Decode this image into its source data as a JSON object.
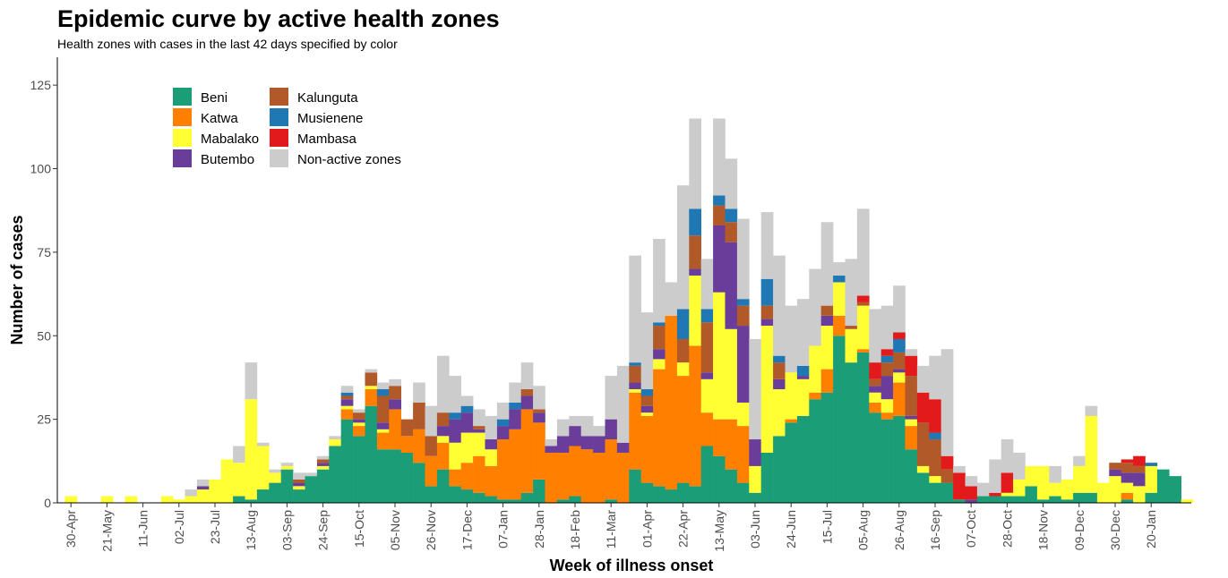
{
  "title": "Epidemic curve by active health zones",
  "subtitle": "Health zones with cases in the last 42 days specified by color",
  "chart_data": {
    "type": "bar",
    "stacked": true,
    "title": "Epidemic curve by active health zones",
    "subtitle": "Health zones with cases in the last 42 days specified by color",
    "xlabel": "Week of illness onset",
    "ylabel": "Number of cases",
    "ylim": [
      0,
      133
    ],
    "yticks": [
      0,
      25,
      50,
      75,
      100,
      125
    ],
    "grid": false,
    "legend_position": "top-left inside plot, two columns",
    "x_tick_labels": [
      "30-Apr",
      "21-May",
      "11-Jun",
      "02-Jul",
      "23-Jul",
      "13-Aug",
      "03-Sep",
      "24-Sep",
      "15-Oct",
      "05-Nov",
      "26-Nov",
      "17-Dec",
      "07-Jan",
      "28-Jan",
      "18-Feb",
      "11-Mar",
      "01-Apr",
      "22-Apr",
      "13-May",
      "03-Jun",
      "24-Jun",
      "15-Jul",
      "05-Aug",
      "26-Aug",
      "16-Sep",
      "07-Oct",
      "28-Oct",
      "18-Nov",
      "09-Dec",
      "30-Dec",
      "20-Jan"
    ],
    "x_tick_week_index": [
      0,
      3,
      6,
      9,
      12,
      15,
      18,
      21,
      24,
      27,
      30,
      33,
      36,
      39,
      42,
      45,
      48,
      51,
      54,
      57,
      60,
      63,
      66,
      69,
      72,
      75,
      78,
      81,
      84,
      87,
      90
    ],
    "legend_order": [
      "Beni",
      "Kalunguta",
      "Katwa",
      "Musienene",
      "Mabalako",
      "Mambasa",
      "Butembo",
      "Non-active zones"
    ],
    "series_order": [
      "Beni",
      "Katwa",
      "Mabalako",
      "Butembo",
      "Kalunguta",
      "Musienene",
      "Mambasa",
      "Non-active zones"
    ],
    "series": [
      {
        "name": "Beni",
        "color": "#1b9e77",
        "values": [
          0,
          0,
          0,
          0,
          0,
          0,
          0,
          0,
          0,
          0,
          0,
          0,
          0,
          0,
          2,
          1,
          4,
          6,
          10,
          4,
          8,
          10,
          17,
          25,
          20,
          29,
          16,
          16,
          15,
          12,
          5,
          10,
          5,
          4,
          3,
          2,
          1,
          1,
          3,
          7,
          0,
          1,
          2,
          0,
          0,
          1,
          0,
          10,
          6,
          5,
          4,
          6,
          5,
          17,
          14,
          10,
          6,
          3,
          15,
          20,
          24,
          26,
          31,
          33,
          50,
          42,
          45,
          27,
          25,
          26,
          16,
          9,
          6,
          6,
          1,
          0,
          2,
          2,
          2,
          2,
          5,
          1,
          2,
          1,
          3,
          3,
          0,
          0,
          1,
          0,
          3,
          10,
          8,
          0
        ]
      },
      {
        "name": "Katwa",
        "color": "#ff7f00",
        "values": [
          0,
          0,
          0,
          0,
          0,
          0,
          0,
          0,
          0,
          0,
          0,
          0,
          0,
          0,
          0,
          0,
          0,
          0,
          0,
          0,
          0,
          0,
          0,
          3,
          3,
          5,
          5,
          12,
          5,
          10,
          9,
          8,
          5,
          8,
          11,
          9,
          18,
          21,
          25,
          17,
          15,
          14,
          15,
          16,
          15,
          18,
          15,
          23,
          20,
          35,
          52,
          32,
          42,
          10,
          11,
          15,
          17,
          0,
          0,
          0,
          1,
          0,
          2,
          7,
          6,
          0,
          1,
          3,
          2,
          10,
          7,
          0,
          0,
          0,
          0,
          0,
          0,
          0,
          0,
          0,
          0,
          0,
          0,
          0,
          0,
          0,
          0,
          0,
          2,
          0,
          0,
          0,
          0,
          0
        ]
      },
      {
        "name": "Mabalako",
        "color": "#ffff33",
        "values": [
          2,
          0,
          0,
          2,
          0,
          2,
          0,
          0,
          2,
          1,
          2,
          4,
          7,
          13,
          10,
          30,
          13,
          3,
          1,
          1,
          0,
          1,
          2,
          1,
          1,
          1,
          1,
          0,
          0,
          0,
          0,
          2,
          8,
          9,
          7,
          5,
          0,
          0,
          0,
          0,
          0,
          0,
          0,
          0,
          0,
          0,
          0,
          1,
          1,
          3,
          0,
          4,
          21,
          10,
          38,
          27,
          7,
          8,
          38,
          14,
          14,
          11,
          14,
          13,
          10,
          10,
          13,
          3,
          4,
          3,
          2,
          2,
          2,
          0,
          0,
          0,
          0,
          0,
          1,
          5,
          6,
          10,
          4,
          6,
          8,
          23,
          6,
          8,
          3,
          5,
          8,
          0,
          0,
          1
        ]
      },
      {
        "name": "Butembo",
        "color": "#6a3d9a",
        "values": [
          0,
          0,
          0,
          0,
          0,
          0,
          0,
          0,
          0,
          0,
          0,
          1,
          0,
          0,
          0,
          0,
          0,
          0,
          0,
          1,
          0,
          1,
          0,
          2,
          1,
          0,
          2,
          3,
          0,
          0,
          0,
          3,
          7,
          6,
          1,
          3,
          4,
          6,
          4,
          3,
          2,
          5,
          6,
          4,
          5,
          6,
          3,
          2,
          2,
          3,
          0,
          0,
          2,
          2,
          20,
          26,
          23,
          8,
          2,
          3,
          0,
          1,
          0,
          3,
          0,
          0,
          0,
          2,
          7,
          1,
          1,
          0,
          0,
          0,
          0,
          1,
          0,
          0,
          0,
          0,
          0,
          0,
          0,
          0,
          0,
          0,
          0,
          2,
          3,
          4,
          0,
          0,
          0,
          0
        ]
      },
      {
        "name": "Kalunguta",
        "color": "#b15928",
        "values": [
          0,
          0,
          0,
          0,
          0,
          0,
          0,
          0,
          0,
          0,
          0,
          0,
          0,
          0,
          0,
          0,
          0,
          0,
          0,
          1,
          0,
          1,
          0,
          1,
          2,
          4,
          8,
          4,
          5,
          8,
          6,
          4,
          0,
          0,
          1,
          0,
          0,
          0,
          2,
          1,
          0,
          0,
          0,
          0,
          0,
          0,
          0,
          5,
          3,
          7,
          0,
          7,
          10,
          15,
          6,
          6,
          6,
          0,
          4,
          5,
          0,
          0,
          0,
          3,
          0,
          1,
          1,
          2,
          4,
          5,
          12,
          13,
          11,
          4,
          0,
          0,
          0,
          0,
          0,
          0,
          0,
          0,
          0,
          0,
          0,
          0,
          0,
          2,
          3,
          2,
          0,
          0,
          0,
          0
        ]
      },
      {
        "name": "Musienene",
        "color": "#1f78b4",
        "values": [
          0,
          0,
          0,
          0,
          0,
          0,
          0,
          0,
          0,
          0,
          0,
          0,
          0,
          0,
          0,
          0,
          0,
          0,
          0,
          0,
          0,
          0,
          0,
          1,
          0,
          0,
          2,
          0,
          0,
          0,
          0,
          0,
          2,
          2,
          0,
          0,
          2,
          2,
          0,
          0,
          0,
          0,
          0,
          0,
          0,
          0,
          0,
          1,
          2,
          1,
          0,
          9,
          8,
          4,
          3,
          4,
          2,
          0,
          8,
          2,
          0,
          3,
          0,
          0,
          2,
          0,
          0,
          0,
          2,
          4,
          0,
          0,
          2,
          0,
          0,
          0,
          0,
          0,
          0,
          0,
          0,
          0,
          0,
          0,
          0,
          0,
          0,
          0,
          0,
          0,
          1,
          0,
          0,
          0
        ]
      },
      {
        "name": "Mambasa",
        "color": "#e31a1c",
        "values": [
          0,
          0,
          0,
          0,
          0,
          0,
          0,
          0,
          0,
          0,
          0,
          0,
          0,
          0,
          0,
          0,
          0,
          0,
          0,
          0,
          0,
          0,
          0,
          0,
          0,
          0,
          0,
          0,
          0,
          0,
          0,
          0,
          0,
          0,
          0,
          0,
          0,
          0,
          0,
          0,
          0,
          0,
          0,
          0,
          0,
          0,
          0,
          0,
          0,
          0,
          0,
          0,
          0,
          0,
          0,
          0,
          0,
          0,
          0,
          0,
          0,
          0,
          0,
          0,
          0,
          0,
          2,
          5,
          2,
          2,
          6,
          9,
          10,
          4,
          8,
          4,
          0,
          1,
          6,
          0,
          0,
          0,
          0,
          0,
          0,
          0,
          0,
          0,
          1,
          3,
          0,
          0,
          0,
          0
        ]
      },
      {
        "name": "Non-active zones",
        "color": "#cccccc",
        "values": [
          0,
          0,
          0,
          0,
          0,
          0,
          0,
          0,
          0,
          0,
          2,
          2,
          0,
          0,
          5,
          11,
          1,
          1,
          1,
          2,
          1,
          1,
          1,
          2,
          1,
          1,
          2,
          2,
          0,
          6,
          9,
          17,
          11,
          3,
          5,
          7,
          5,
          6,
          8,
          7,
          2,
          5,
          3,
          6,
          3,
          13,
          23,
          32,
          23,
          25,
          10,
          37,
          27,
          15,
          23,
          15,
          24,
          30,
          20,
          30,
          20,
          20,
          23,
          25,
          4,
          20,
          26,
          16,
          13,
          14,
          2,
          8,
          13,
          32,
          2,
          3,
          4,
          10,
          10,
          8,
          0,
          0,
          5,
          0,
          3,
          3,
          0,
          0,
          0,
          0,
          0,
          0,
          0,
          0
        ]
      }
    ]
  }
}
